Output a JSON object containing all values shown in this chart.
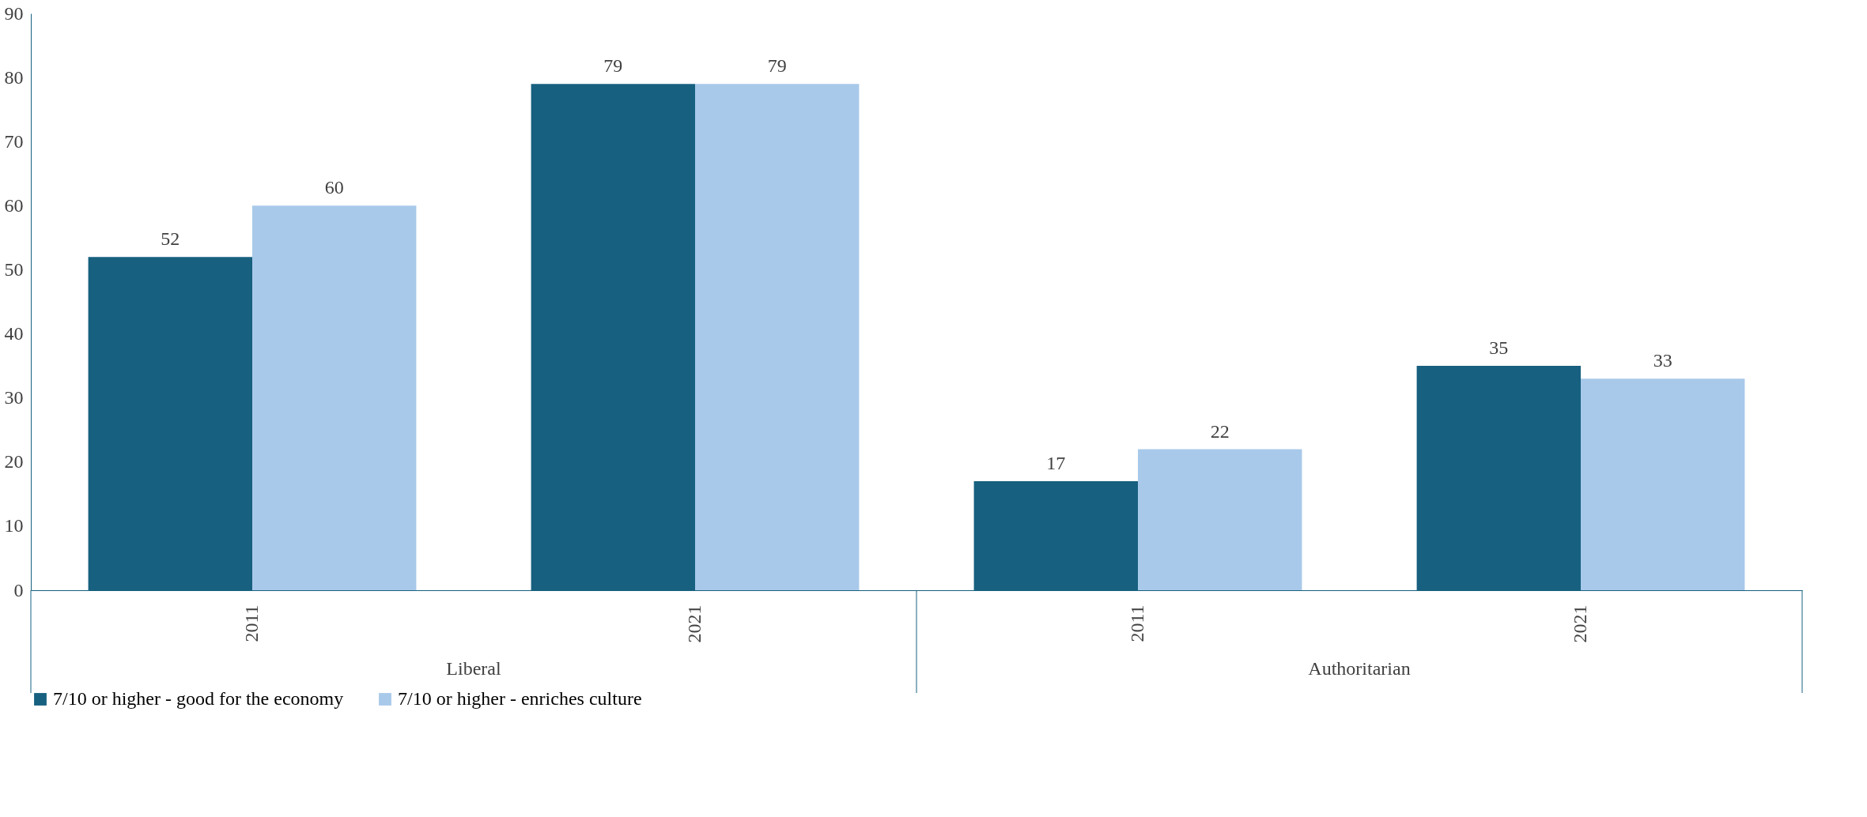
{
  "chart_data": {
    "type": "bar",
    "categories": [
      "2011",
      "2021",
      "2011",
      "2021"
    ],
    "series": [
      {
        "name": "7/10 or higher - good for the economy",
        "color": "#17607f",
        "values": [
          52,
          79,
          17,
          35
        ]
      },
      {
        "name": "7/10 or higher - enriches culture",
        "color": "#a8c9ea",
        "values": [
          60,
          79,
          22,
          33
        ]
      }
    ],
    "annotations": [
      "Liberal",
      "Authoritarian"
    ],
    "ylim": [
      0,
      90
    ],
    "yticks": [
      0,
      10,
      20,
      30,
      40,
      50,
      60,
      70,
      80,
      90
    ],
    "data_labels": true,
    "legend": "bottom",
    "grid": false
  }
}
